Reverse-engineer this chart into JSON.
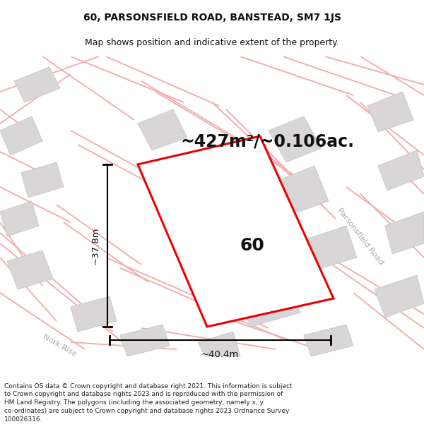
{
  "title_line1": "60, PARSONSFIELD ROAD, BANSTEAD, SM7 1JS",
  "title_line2": "Map shows position and indicative extent of the property.",
  "area_text": "~427m²/~0.106ac.",
  "label_number": "60",
  "dim_width": "~40.4m",
  "dim_height": "~37.8m",
  "road_label1": "Parsonsfield Road",
  "road_label2": "Nork Rise",
  "footer_text": "Contains OS data © Crown copyright and database right 2021. This information is subject to Crown copyright and database rights 2023 and is reproduced with the permission of HM Land Registry. The polygons (including the associated geometry, namely x, y co-ordinates) are subject to Crown copyright and database rights 2023 Ordnance Survey 100026316.",
  "bg_color": "#ffffff",
  "map_bg": "#f2f0f0",
  "plot_color": "#ee0000",
  "road_stroke": "#f0b0b0",
  "building_color": "#d8d6d6",
  "text_color": "#111111",
  "road_text_color": "#aaaaaa",
  "footer_color": "#222222",
  "title_fontsize": 10,
  "subtitle_fontsize": 9,
  "area_fontsize": 17,
  "label_fontsize": 18,
  "dim_fontsize": 9.5,
  "road_label_fontsize": 8,
  "footer_fontsize": 6.5
}
